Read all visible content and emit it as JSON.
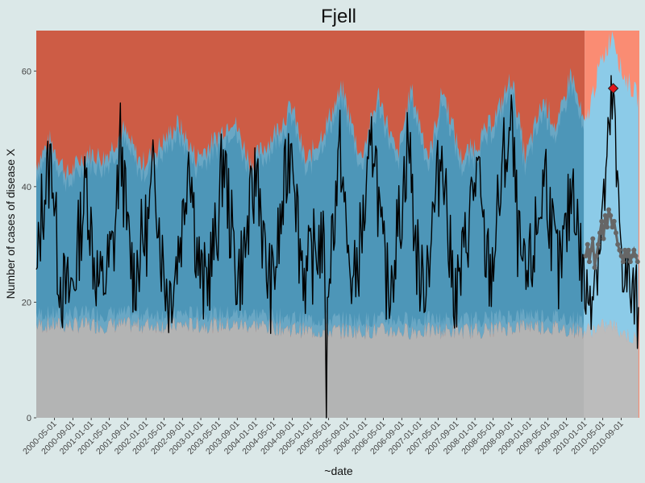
{
  "chart_data": {
    "type": "area",
    "title": "Fjell",
    "xlabel": "~date",
    "ylabel": "Number of cases of disease X",
    "x_range": [
      "2000-01-01",
      "2010-12-31"
    ],
    "ylim": [
      0,
      67
    ],
    "y_ticks": [
      0,
      20,
      40,
      60
    ],
    "x_tick_labels": [
      "2000-05-01",
      "2000-09-01",
      "2001-01-01",
      "2001-05-01",
      "2001-09-01",
      "2002-01-01",
      "2002-05-01",
      "2002-09-01",
      "2003-01-01",
      "2003-05-01",
      "2003-09-01",
      "2004-01-01",
      "2004-05-01",
      "2004-09-01",
      "2005-01-01",
      "2005-05-01",
      "2005-09-01",
      "2006-01-01",
      "2006-05-01",
      "2006-09-01",
      "2007-01-01",
      "2007-05-01",
      "2007-09-01",
      "2008-01-01",
      "2008-05-01",
      "2008-09-01",
      "2009-01-01",
      "2009-05-01",
      "2009-09-01",
      "2010-01-01",
      "2010-05-01",
      "2010-09-01"
    ],
    "baseline_end": "2010-01-01",
    "colors": {
      "background": "#dbe8e8",
      "normal_band": "#4d96b8",
      "normal_band_outer": "#6aa7c4",
      "high_zone": "#cd5c45",
      "low_zone": "#b3b4b4",
      "test_high_zone": "#fa8c73",
      "test_normal_band": "#8ccbe8",
      "test_low_zone": "#bcbcbc",
      "cases_line": "#000000",
      "threshold_points": "#666666",
      "alert_marker": "#e0161b"
    },
    "alert": {
      "date": "2010-07-10",
      "value": 57
    },
    "cases_keyframes": [
      [
        "2000-01-01",
        22
      ],
      [
        "2000-02-05",
        36
      ],
      [
        "2000-03-10",
        41
      ],
      [
        "2000-04-15",
        45
      ],
      [
        "2000-05-20",
        28
      ],
      [
        "2000-06-25",
        22
      ],
      [
        "2000-08-01",
        21
      ],
      [
        "2000-09-10",
        24
      ],
      [
        "2000-10-20",
        33
      ],
      [
        "2000-12-01",
        41
      ],
      [
        "2001-01-15",
        28
      ],
      [
        "2001-03-01",
        22
      ],
      [
        "2001-04-15",
        25
      ],
      [
        "2001-06-01",
        30
      ],
      [
        "2001-07-15",
        48
      ],
      [
        "2001-09-01",
        31
      ],
      [
        "2001-10-15",
        24
      ],
      [
        "2001-12-01",
        30
      ],
      [
        "2002-01-15",
        33
      ],
      [
        "2002-03-01",
        44
      ],
      [
        "2002-04-15",
        28
      ],
      [
        "2002-06-01",
        21
      ],
      [
        "2002-07-15",
        26
      ],
      [
        "2002-09-01",
        34
      ],
      [
        "2002-10-15",
        48
      ],
      [
        "2002-12-01",
        30
      ],
      [
        "2003-01-15",
        22
      ],
      [
        "2003-03-01",
        26
      ],
      [
        "2003-04-15",
        31
      ],
      [
        "2003-06-01",
        46
      ],
      [
        "2003-07-15",
        34
      ],
      [
        "2003-09-01",
        24
      ],
      [
        "2003-10-15",
        28
      ],
      [
        "2003-12-01",
        36
      ],
      [
        "2004-01-15",
        44
      ],
      [
        "2004-03-01",
        27
      ],
      [
        "2004-04-15",
        22
      ],
      [
        "2004-06-01",
        30
      ],
      [
        "2004-07-15",
        40
      ],
      [
        "2004-09-01",
        50
      ],
      [
        "2004-10-15",
        31
      ],
      [
        "2004-12-01",
        24
      ],
      [
        "2005-02-01",
        29
      ],
      [
        "2005-03-20",
        31
      ],
      [
        "2005-04-10",
        22
      ],
      [
        "2005-04-18",
        0
      ],
      [
        "2005-04-26",
        24
      ],
      [
        "2005-06-01",
        34
      ],
      [
        "2005-07-20",
        47
      ],
      [
        "2005-09-01",
        29
      ],
      [
        "2005-10-15",
        22
      ],
      [
        "2005-12-01",
        31
      ],
      [
        "2006-01-15",
        39
      ],
      [
        "2006-03-01",
        50
      ],
      [
        "2006-04-15",
        30
      ],
      [
        "2006-06-01",
        22
      ],
      [
        "2006-07-15",
        29
      ],
      [
        "2006-09-01",
        37
      ],
      [
        "2006-10-15",
        49
      ],
      [
        "2006-12-01",
        30
      ],
      [
        "2007-01-15",
        22
      ],
      [
        "2007-03-01",
        29
      ],
      [
        "2007-04-15",
        38
      ],
      [
        "2007-06-01",
        48
      ],
      [
        "2007-07-15",
        28
      ],
      [
        "2007-09-01",
        21
      ],
      [
        "2007-10-15",
        27
      ],
      [
        "2007-12-01",
        36
      ],
      [
        "2008-01-15",
        43
      ],
      [
        "2008-03-01",
        30
      ],
      [
        "2008-04-15",
        24
      ],
      [
        "2008-06-01",
        35
      ],
      [
        "2008-07-15",
        45
      ],
      [
        "2008-09-01",
        50
      ],
      [
        "2008-10-15",
        30
      ],
      [
        "2008-12-01",
        22
      ],
      [
        "2009-01-15",
        27
      ],
      [
        "2009-03-01",
        35
      ],
      [
        "2009-04-15",
        43
      ],
      [
        "2009-06-01",
        31
      ],
      [
        "2009-07-15",
        24
      ],
      [
        "2009-09-01",
        32
      ],
      [
        "2009-10-15",
        42
      ],
      [
        "2009-12-01",
        28
      ],
      [
        "2010-01-15",
        20
      ],
      [
        "2010-03-01",
        25
      ],
      [
        "2010-04-15",
        31
      ],
      [
        "2010-06-01",
        44
      ],
      [
        "2010-07-10",
        57
      ],
      [
        "2010-08-01",
        40
      ],
      [
        "2010-09-10",
        28
      ],
      [
        "2010-10-20",
        22
      ],
      [
        "2010-12-31",
        18
      ]
    ],
    "upper_keyframes": [
      [
        "2000-01-01",
        44
      ],
      [
        "2000-04-01",
        48
      ],
      [
        "2000-08-01",
        42
      ],
      [
        "2000-12-01",
        46
      ],
      [
        "2001-04-01",
        45
      ],
      [
        "2001-08-01",
        50
      ],
      [
        "2001-12-01",
        44
      ],
      [
        "2002-04-01",
        47
      ],
      [
        "2002-08-01",
        51
      ],
      [
        "2002-12-01",
        45
      ],
      [
        "2003-04-01",
        48
      ],
      [
        "2003-08-01",
        52
      ],
      [
        "2003-12-01",
        44
      ],
      [
        "2004-04-01",
        48
      ],
      [
        "2004-09-01",
        54
      ],
      [
        "2004-12-01",
        44
      ],
      [
        "2005-04-01",
        50
      ],
      [
        "2005-08-01",
        57
      ],
      [
        "2005-12-01",
        45
      ],
      [
        "2006-04-01",
        56
      ],
      [
        "2006-08-01",
        45
      ],
      [
        "2006-11-01",
        57
      ],
      [
        "2007-03-01",
        45
      ],
      [
        "2007-06-01",
        57
      ],
      [
        "2007-10-01",
        45
      ],
      [
        "2008-02-01",
        48
      ],
      [
        "2008-06-01",
        53
      ],
      [
        "2008-09-01",
        59
      ],
      [
        "2008-12-01",
        45
      ],
      [
        "2009-04-01",
        55
      ],
      [
        "2009-07-01",
        50
      ],
      [
        "2009-10-01",
        60
      ],
      [
        "2010-01-01",
        50
      ],
      [
        "2010-04-01",
        60
      ],
      [
        "2010-07-10",
        67
      ],
      [
        "2010-09-01",
        60
      ],
      [
        "2010-12-31",
        55
      ]
    ],
    "lower_keyframes": [
      [
        "2000-01-01",
        16
      ],
      [
        "2001-01-01",
        16
      ],
      [
        "2002-01-01",
        16
      ],
      [
        "2003-01-01",
        16
      ],
      [
        "2004-01-01",
        16
      ],
      [
        "2005-01-01",
        15
      ],
      [
        "2006-01-01",
        15
      ],
      [
        "2007-01-01",
        15
      ],
      [
        "2008-01-01",
        15
      ],
      [
        "2009-01-01",
        16
      ],
      [
        "2010-01-01",
        15
      ],
      [
        "2010-07-01",
        16
      ],
      [
        "2010-12-31",
        13
      ]
    ],
    "threshold_points": [
      [
        "2010-01-08",
        28
      ],
      [
        "2010-01-20",
        30
      ],
      [
        "2010-02-01",
        27
      ],
      [
        "2010-02-12",
        29
      ],
      [
        "2010-02-24",
        31
      ],
      [
        "2010-03-08",
        26
      ],
      [
        "2010-03-20",
        28
      ],
      [
        "2010-04-01",
        30
      ],
      [
        "2010-04-12",
        32
      ],
      [
        "2010-04-24",
        34
      ],
      [
        "2010-05-06",
        31
      ],
      [
        "2010-05-18",
        35
      ],
      [
        "2010-05-30",
        33
      ],
      [
        "2010-06-10",
        36
      ],
      [
        "2010-06-22",
        35
      ],
      [
        "2010-07-04",
        33
      ],
      [
        "2010-07-16",
        34
      ],
      [
        "2010-07-28",
        32
      ],
      [
        "2010-08-09",
        30
      ],
      [
        "2010-08-21",
        29
      ],
      [
        "2010-09-02",
        28
      ],
      [
        "2010-09-14",
        27
      ],
      [
        "2010-09-26",
        29
      ],
      [
        "2010-10-08",
        28
      ],
      [
        "2010-10-20",
        29
      ],
      [
        "2010-11-01",
        27
      ],
      [
        "2010-11-13",
        28
      ],
      [
        "2010-11-25",
        29
      ],
      [
        "2010-12-07",
        28
      ],
      [
        "2010-12-19",
        27
      ]
    ]
  }
}
